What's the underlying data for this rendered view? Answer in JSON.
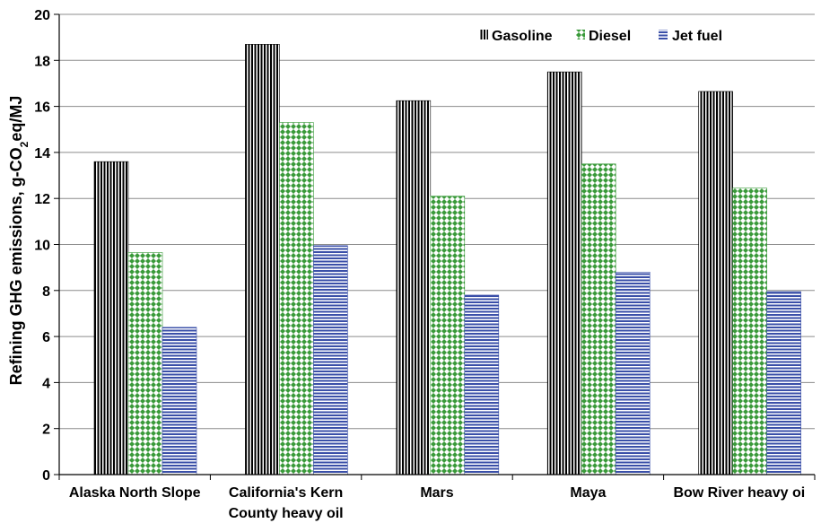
{
  "chart_data": {
    "type": "bar",
    "categories": [
      "Alaska North Slope",
      "California's Kern County heavy oil",
      "Mars",
      "Maya",
      "Bow River heavy oi"
    ],
    "category_lines": [
      [
        "Alaska North Slope"
      ],
      [
        "California's Kern",
        "County heavy oil"
      ],
      [
        "Mars"
      ],
      [
        "Maya"
      ],
      [
        "Bow River heavy oi"
      ]
    ],
    "series": [
      {
        "name": "Gasoline",
        "values": [
          13.6,
          18.7,
          16.25,
          17.5,
          16.65
        ],
        "pattern": "vertical-lines",
        "color": "#000000"
      },
      {
        "name": "Diesel",
        "values": [
          9.65,
          15.3,
          12.1,
          13.5,
          12.45
        ],
        "pattern": "diamonds",
        "color": "#3a9a3a"
      },
      {
        "name": "Jet fuel",
        "values": [
          6.4,
          9.95,
          7.8,
          8.8,
          7.95
        ],
        "pattern": "horizontal-lines",
        "color": "#3a4fa8"
      }
    ],
    "title": "",
    "xlabel": "",
    "ylabel": "Refining GHG emissions, g-CO2eq/MJ",
    "ylabel_parts": {
      "pre": "Refining GHG emissions, g-CO",
      "sub": "2",
      "post": "eq/MJ"
    },
    "ylim": [
      0,
      20
    ],
    "yticks": [
      0,
      2,
      4,
      6,
      8,
      10,
      12,
      14,
      16,
      18,
      20
    ],
    "grid": true,
    "legend_position": "top-right"
  }
}
